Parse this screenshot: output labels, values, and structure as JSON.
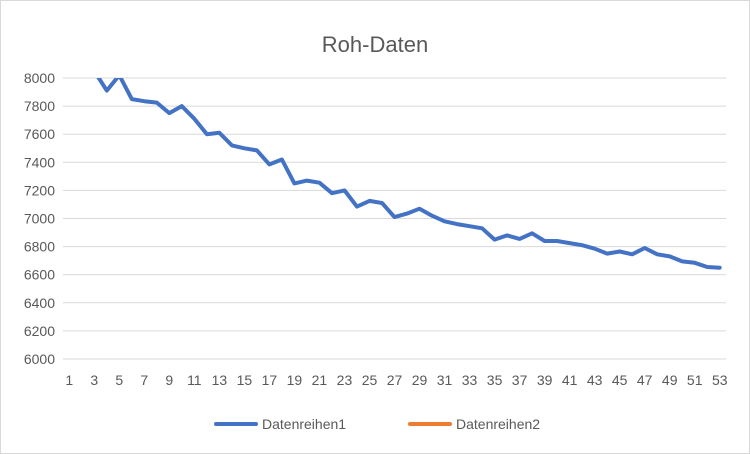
{
  "chart_data": {
    "type": "line",
    "title": "Roh-Daten",
    "xlabel": "",
    "ylabel": "",
    "ylim": [
      6000,
      8000
    ],
    "y_ticks": [
      6000,
      6200,
      6400,
      6600,
      6800,
      7000,
      7200,
      7400,
      7600,
      7800,
      8000
    ],
    "x_tick_labels": [
      "1",
      "3",
      "5",
      "7",
      "9",
      "11",
      "13",
      "15",
      "17",
      "19",
      "21",
      "23",
      "25",
      "27",
      "29",
      "31",
      "33",
      "35",
      "37",
      "39",
      "41",
      "43",
      "45",
      "47",
      "49",
      "51",
      "53"
    ],
    "grid": "horizontal",
    "legend_position": "bottom",
    "series": [
      {
        "name": "Datenreihen1",
        "color": "#4472c4",
        "values": [
          null,
          null,
          8050,
          7910,
          8020,
          7850,
          7835,
          7825,
          7750,
          7800,
          7710,
          7600,
          7610,
          7520,
          7500,
          7485,
          7385,
          7420,
          7250,
          7270,
          7255,
          7180,
          7200,
          7085,
          7125,
          7110,
          7010,
          7035,
          7070,
          7020,
          6980,
          6960,
          6945,
          6930,
          6850,
          6880,
          6855,
          6895,
          6840,
          6840,
          6825,
          6810,
          6785,
          6750,
          6765,
          6745,
          6790,
          6745,
          6730,
          6695,
          6685,
          6655,
          6650
        ]
      },
      {
        "name": "Datenreihen2",
        "color": "#ed7d31",
        "values": []
      }
    ]
  }
}
